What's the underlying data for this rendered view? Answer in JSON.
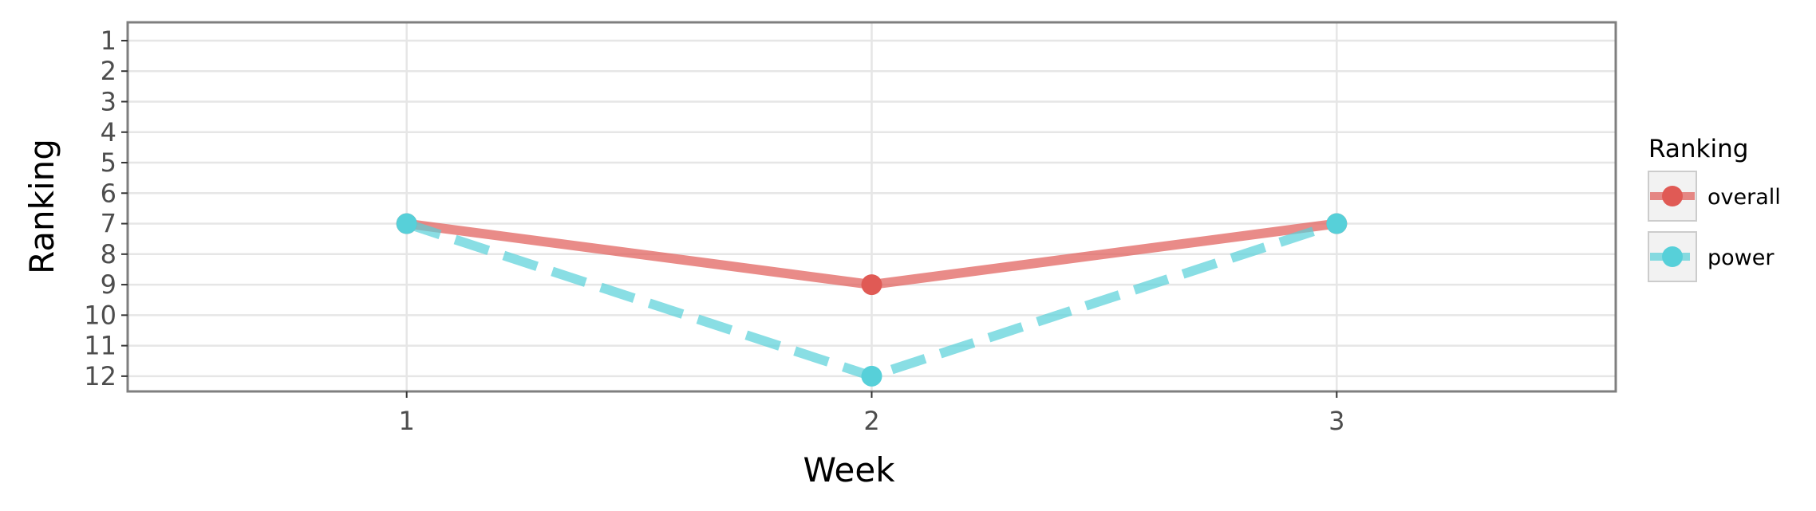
{
  "chart_data": {
    "type": "line",
    "title": "",
    "xlabel": "Week",
    "ylabel": "Ranking",
    "x": [
      1,
      2,
      3
    ],
    "x_ticks": [
      "1",
      "2",
      "3"
    ],
    "y_ticks": [
      "1",
      "2",
      "3",
      "4",
      "5",
      "6",
      "7",
      "8",
      "9",
      "10",
      "11",
      "12"
    ],
    "xlim": [
      0.4,
      3.6
    ],
    "ylim": [
      0.4,
      12.5
    ],
    "y_reversed": true,
    "grid": true,
    "legend": {
      "title": "Ranking",
      "placement": "right"
    },
    "series": [
      {
        "name": "overall",
        "values": [
          7,
          9,
          7
        ],
        "color": "#E05A55",
        "line_style": "solid"
      },
      {
        "name": "power",
        "values": [
          7,
          12,
          7
        ],
        "color": "#57D0D9",
        "line_style": "dashed"
      }
    ]
  }
}
